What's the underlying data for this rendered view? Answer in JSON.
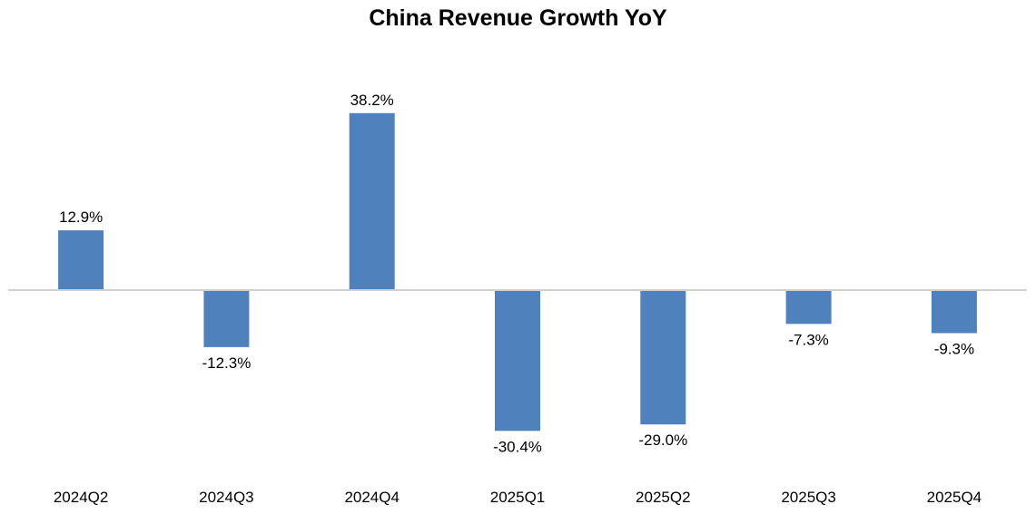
{
  "chart_data": {
    "type": "bar",
    "title": "China Revenue Growth YoY",
    "categories": [
      "2024Q2",
      "2024Q3",
      "2024Q4",
      "2025Q1",
      "2025Q2",
      "2025Q3",
      "2025Q4"
    ],
    "values": [
      12.9,
      -12.3,
      38.2,
      -30.4,
      -29.0,
      -7.3,
      -9.3
    ],
    "data_labels": [
      "12.9%",
      "-12.3%",
      "38.2%",
      "-30.4%",
      "-29.0%",
      "-7.3%",
      "-9.3%"
    ],
    "xlabel": "",
    "ylabel": "",
    "ylim": [
      -35,
      45
    ],
    "grid": false,
    "legend": "none",
    "colors": {
      "bar": "#4f81bd",
      "axis": "#d0d0d0",
      "text": "#000000"
    }
  }
}
